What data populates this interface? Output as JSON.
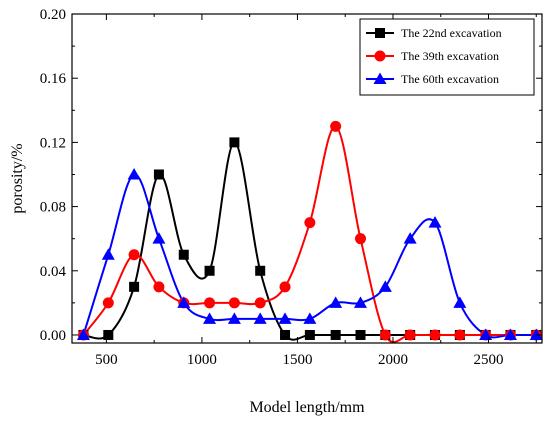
{
  "chart_data": {
    "type": "line",
    "xlabel": "Model length/mm",
    "ylabel": "porosity/%",
    "xlim": [
      320,
      2780
    ],
    "ylim": [
      -0.005,
      0.2
    ],
    "xticks": [
      500,
      1000,
      1500,
      2000,
      2500
    ],
    "xtick_labels": [
      "500",
      "1000",
      "1500",
      "2000",
      "2500"
    ],
    "yticks": [
      0.0,
      0.04,
      0.08,
      0.12,
      0.16,
      0.2
    ],
    "ytick_labels": [
      "0.00",
      "0.04",
      "0.08",
      "0.12",
      "0.16",
      "0.20"
    ],
    "grid": false,
    "legend_position": "top-right",
    "series": [
      {
        "name": "The 22nd excavation",
        "color": "#000000",
        "marker": "square",
        "x": [
          380,
          510,
          645,
          775,
          905,
          1040,
          1170,
          1305,
          1435,
          1565,
          1700,
          1830,
          1960,
          2090,
          2220,
          2350,
          2485,
          2615,
          2750
        ],
        "y": [
          0.0,
          0.0,
          0.03,
          0.1,
          0.05,
          0.04,
          0.12,
          0.04,
          0.0,
          0.0,
          0.0,
          0.0,
          0.0,
          0.0,
          0.0,
          0.0,
          0.0,
          0.0,
          0.0
        ]
      },
      {
        "name": "The 39th excavation",
        "color": "#ff0000",
        "marker": "circle",
        "x": [
          380,
          510,
          645,
          775,
          905,
          1040,
          1170,
          1305,
          1435,
          1565,
          1700,
          1830,
          1960,
          2090,
          2220,
          2350,
          2485,
          2615,
          2750
        ],
        "y": [
          0.0,
          0.02,
          0.05,
          0.03,
          0.02,
          0.02,
          0.02,
          0.02,
          0.03,
          0.07,
          0.13,
          0.06,
          0.0,
          0.0,
          0.0,
          0.0,
          0.0,
          0.0,
          0.0
        ]
      },
      {
        "name": "The 60th excavation",
        "color": "#0000ff",
        "marker": "triangle",
        "x": [
          380,
          510,
          645,
          775,
          905,
          1040,
          1170,
          1305,
          1435,
          1565,
          1700,
          1830,
          1960,
          2090,
          2220,
          2350,
          2485,
          2615,
          2750
        ],
        "y": [
          0.0,
          0.05,
          0.1,
          0.06,
          0.02,
          0.01,
          0.01,
          0.01,
          0.01,
          0.01,
          0.02,
          0.02,
          0.03,
          0.06,
          0.07,
          0.02,
          0.0,
          0.0,
          0.0
        ]
      }
    ]
  }
}
